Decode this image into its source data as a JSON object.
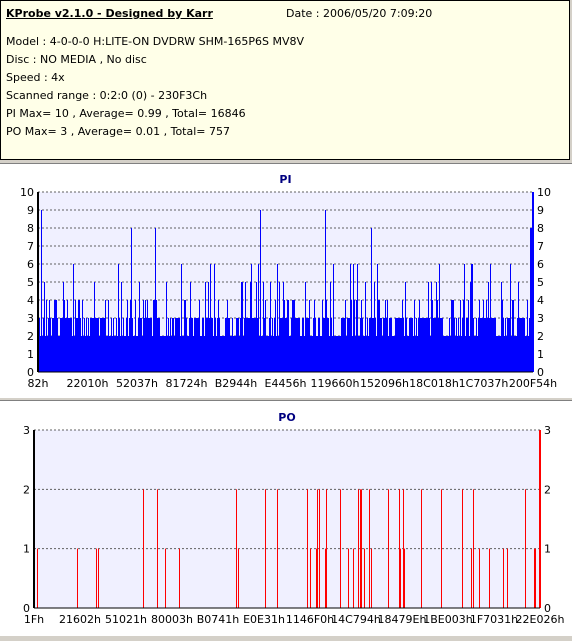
{
  "header": {
    "title": "KProbe v2.1.0 - Designed by Karr",
    "date": "Date : 2006/05/20 7:09:20",
    "model": "Model : 4-0-0-0 H:LITE-ON DVDRW SHM-165P6S MV8V",
    "disc": "Disc : NO MEDIA , No disc",
    "speed": "Speed : 4x",
    "range": "Scanned range : 0:2:0 (0) - 230F3Ch",
    "pi_stats": "PI Max= 10 , Average= 0.99 , Total= 16846",
    "po_stats": "PO Max= 3 , Average= 0.01 , Total= 757"
  },
  "chart_data": [
    {
      "type": "bar",
      "title": "PI",
      "ylim": [
        0,
        10
      ],
      "yticks": [
        "0",
        "1",
        "2",
        "3",
        "4",
        "5",
        "6",
        "7",
        "8",
        "9",
        "10"
      ],
      "xticks": [
        "82h",
        "22010h",
        "52037h",
        "81724h",
        "B2944h",
        "E4456h",
        "119660h",
        "152096h",
        "18C018h",
        "1C7037h",
        "200F54h"
      ],
      "color": "#0000ff",
      "baseline": 3,
      "grid": true
    },
    {
      "type": "bar",
      "title": "PO",
      "ylim": [
        0,
        3
      ],
      "yticks": [
        "0",
        "1",
        "2",
        "3"
      ],
      "xticks": [
        "1Fh",
        "21602h",
        "51021h",
        "80003h",
        "B0741h",
        "E0E31h",
        "1146F0h",
        "14C794h",
        "18479Eh",
        "1BE003h",
        "1F7031h",
        "22E026h"
      ],
      "color": "#ff0000",
      "baseline": 0,
      "grid": true
    }
  ]
}
